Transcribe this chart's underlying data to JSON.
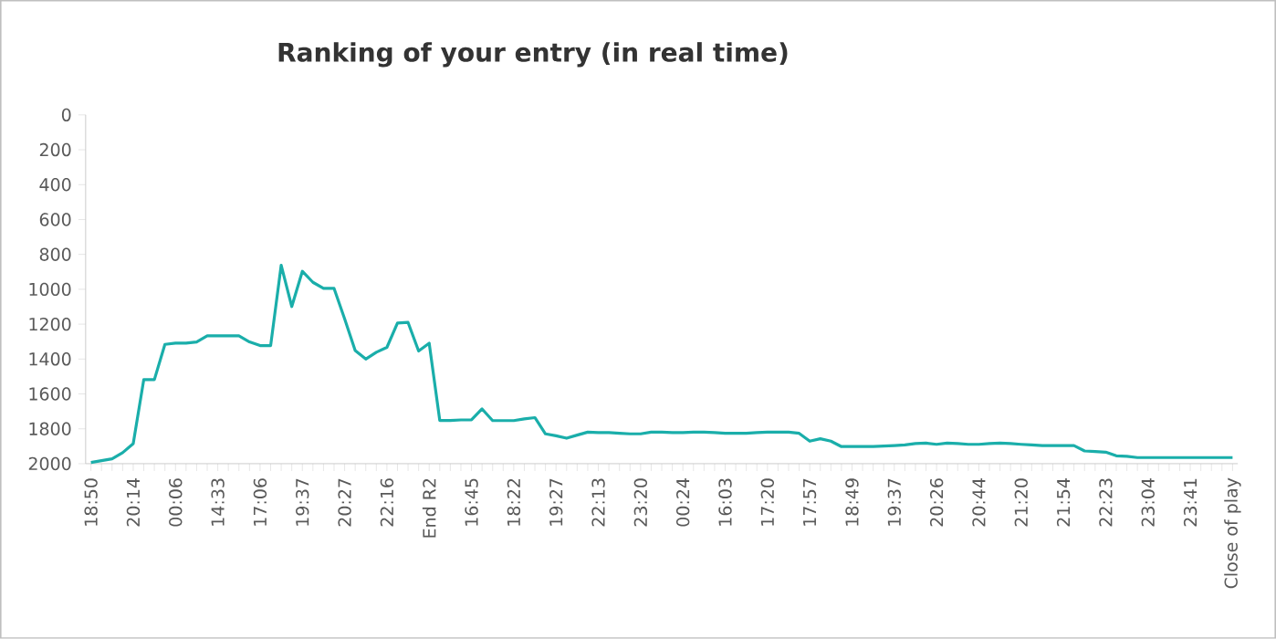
{
  "chart_data": {
    "type": "line",
    "title": "Ranking of your entry (in real time)",
    "categories": [
      "18:50",
      null,
      null,
      null,
      "20:14",
      null,
      null,
      null,
      "00:06",
      null,
      null,
      null,
      "14:33",
      null,
      null,
      null,
      "17:06",
      null,
      null,
      null,
      "19:37",
      null,
      null,
      null,
      "20:27",
      null,
      null,
      null,
      "22:16",
      null,
      null,
      null,
      "End R2",
      null,
      null,
      null,
      "16:45",
      null,
      null,
      null,
      "18:22",
      null,
      null,
      null,
      "19:27",
      null,
      null,
      null,
      "22:13",
      null,
      null,
      null,
      "23:20",
      null,
      null,
      null,
      "00:24",
      null,
      null,
      null,
      "16:03",
      null,
      null,
      null,
      "17:20",
      null,
      null,
      null,
      "17:57",
      null,
      null,
      null,
      "18:49",
      null,
      null,
      null,
      "19:37",
      null,
      null,
      null,
      "20:26",
      null,
      null,
      null,
      "20:44",
      null,
      null,
      null,
      "21:20",
      null,
      null,
      null,
      "21:54",
      null,
      null,
      null,
      "22:23",
      null,
      null,
      null,
      "23:04",
      null,
      null,
      null,
      "23:41",
      null,
      null,
      null,
      "Close of play"
    ],
    "series": [
      {
        "color": "#1aaeaa",
        "values": [
          1993,
          1983,
          1972,
          1937,
          1885,
          1518,
          1518,
          1316,
          1309,
          1309,
          1302,
          1267,
          1267,
          1267,
          1267,
          1302,
          1323,
          1323,
          862,
          1099,
          897,
          960,
          995,
          995,
          1169,
          1351,
          1400,
          1361,
          1333,
          1194,
          1190,
          1354,
          1309,
          1752,
          1752,
          1749,
          1749,
          1686,
          1753,
          1753,
          1753,
          1743,
          1736,
          1829,
          1840,
          1854,
          1836,
          1819,
          1822,
          1822,
          1826,
          1829,
          1829,
          1819,
          1819,
          1822,
          1822,
          1819,
          1819,
          1822,
          1826,
          1826,
          1826,
          1822,
          1819,
          1819,
          1819,
          1826,
          1871,
          1857,
          1871,
          1902,
          1902,
          1902,
          1902,
          1899,
          1896,
          1892,
          1885,
          1882,
          1889,
          1882,
          1885,
          1889,
          1889,
          1885,
          1882,
          1885,
          1889,
          1892,
          1896,
          1896,
          1896,
          1896,
          1927,
          1930,
          1934,
          1955,
          1958,
          1965,
          1965,
          1965,
          1965,
          1965,
          1965,
          1965,
          1965,
          1965,
          1965
        ]
      }
    ],
    "ylim": [
      2000,
      0
    ],
    "yticks": [
      0,
      200,
      400,
      600,
      800,
      1000,
      1200,
      1400,
      1600,
      1800,
      2000
    ],
    "marker": "none",
    "line_style": "solid"
  }
}
